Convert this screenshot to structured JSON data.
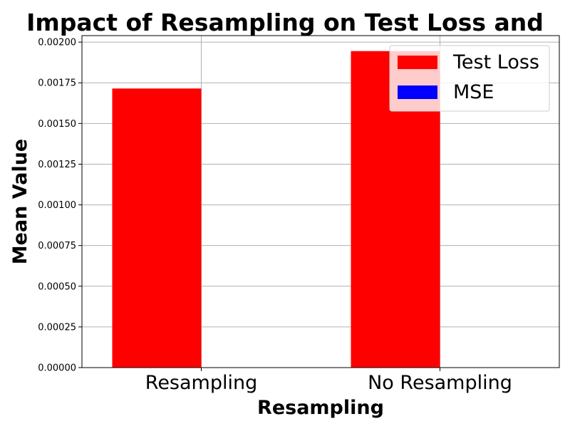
{
  "chart_data": {
    "type": "bar",
    "title": "Impact of Resampling on Test Loss and",
    "xlabel": "Resampling",
    "ylabel": "Mean Value",
    "categories": [
      "Resampling",
      "No Resampling"
    ],
    "series": [
      {
        "name": "Test Loss",
        "color": "#ff0000",
        "values": [
          0.001715,
          0.001945
        ]
      },
      {
        "name": "MSE",
        "color": "#0000ff",
        "values": [
          0,
          0
        ]
      }
    ],
    "yticks": [
      "0.00000",
      "0.00025",
      "0.00050",
      "0.00075",
      "0.00100",
      "0.00125",
      "0.00150",
      "0.00175",
      "0.00200"
    ],
    "ylim": [
      0,
      0.00204
    ],
    "grid": true,
    "legend_position": "top-right"
  }
}
